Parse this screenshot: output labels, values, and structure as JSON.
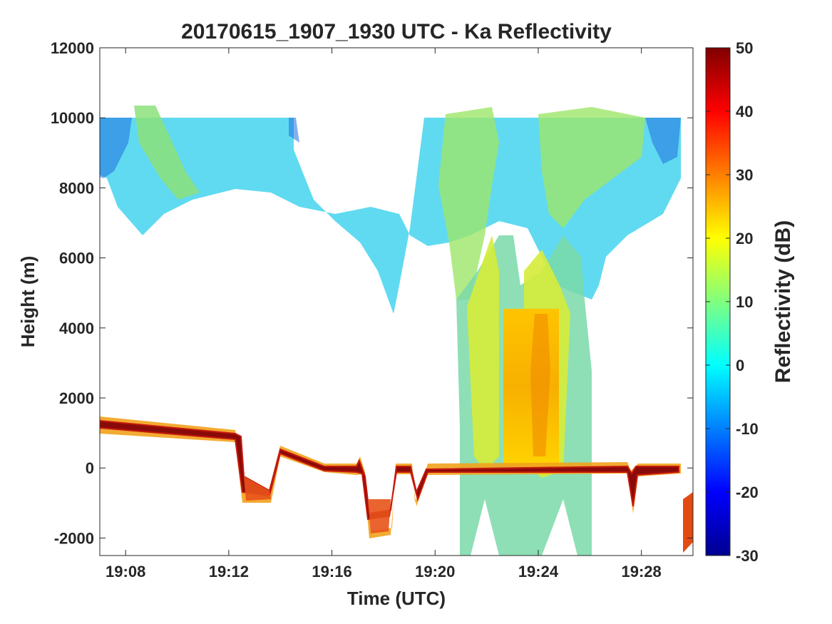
{
  "chart_data": {
    "type": "heatmap",
    "title": "20170615_1907_1930 UTC - Ka Reflectivity",
    "xlabel": "Time (UTC)",
    "ylabel": "Height (m)",
    "x_ticks": [
      "19:08",
      "19:12",
      "19:16",
      "19:20",
      "19:24",
      "19:28"
    ],
    "xlim": [
      "19:07",
      "19:30"
    ],
    "y_ticks": [
      -2000,
      0,
      2000,
      4000,
      6000,
      8000,
      10000,
      12000
    ],
    "ylim": [
      -2500,
      12000
    ],
    "colorbar": {
      "label": "Reflectivity (dB)",
      "ticks": [
        -30,
        -20,
        -10,
        0,
        10,
        20,
        30,
        40,
        50
      ],
      "range": [
        -30,
        50
      ],
      "colormap": "jet"
    },
    "features": {
      "upper_cloud_top_m": 10000,
      "surface_echo_height_m_start": 1200,
      "surface_echo_height_m_end": 0,
      "convective_core_x": [
        "19:22:30",
        "19:25:00"
      ],
      "convective_core_top_m": 4500,
      "convective_core_dbz": 22,
      "surface_echo_dbz": 50,
      "cirrus_dbz": 5
    }
  }
}
